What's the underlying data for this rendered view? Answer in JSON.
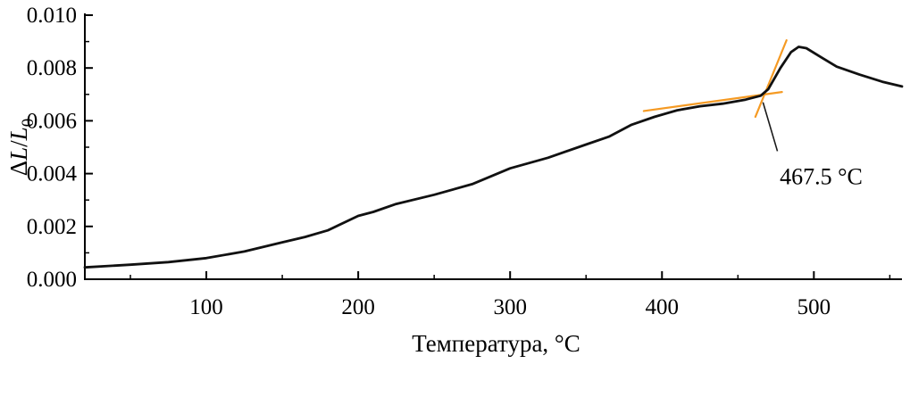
{
  "colors": {
    "axis": "#000000",
    "curve": "#111111",
    "tangent": "#f59a23",
    "leader": "#1a1a1a",
    "background": "#ffffff"
  },
  "chart_data": {
    "type": "line",
    "title": "",
    "xlabel": "Температура, °C",
    "ylabel": "ΔL/L₀",
    "ylabel_parts": {
      "delta": "Δ",
      "numerator": "L",
      "slash": "/",
      "denominator": "L",
      "denominator_sub": "0"
    },
    "xlim": [
      20,
      558
    ],
    "ylim": [
      0.0,
      0.01
    ],
    "grid": false,
    "legend": null,
    "x_ticks": [
      100,
      200,
      300,
      400,
      500
    ],
    "x_tick_labels": [
      "100",
      "200",
      "300",
      "400",
      "500"
    ],
    "x_minor_ticks": [
      50,
      150,
      250,
      350,
      450,
      550
    ],
    "y_ticks": [
      0.0,
      0.002,
      0.004,
      0.006,
      0.008,
      0.01
    ],
    "y_tick_labels": [
      "0.000",
      "0.002",
      "0.004",
      "0.006",
      "0.008",
      "0.010"
    ],
    "y_minor_ticks": [
      0.001,
      0.003,
      0.005,
      0.007,
      0.009
    ],
    "series": [
      {
        "name": "thermal-expansion-curve",
        "x": [
          20,
          50,
          75,
          100,
          125,
          150,
          165,
          180,
          200,
          210,
          225,
          250,
          275,
          300,
          325,
          350,
          365,
          380,
          395,
          410,
          425,
          440,
          455,
          465,
          470,
          478,
          485,
          490,
          495,
          505,
          515,
          530,
          545,
          558
        ],
        "y": [
          0.00045,
          0.00055,
          0.00065,
          0.0008,
          0.00105,
          0.0014,
          0.0016,
          0.00185,
          0.0024,
          0.00255,
          0.00285,
          0.0032,
          0.0036,
          0.0042,
          0.0046,
          0.0051,
          0.0054,
          0.00585,
          0.00615,
          0.0064,
          0.00655,
          0.00665,
          0.0068,
          0.00695,
          0.0072,
          0.008,
          0.0086,
          0.0088,
          0.00875,
          0.0084,
          0.00805,
          0.00775,
          0.00748,
          0.0073
        ]
      }
    ],
    "tangent_lines": [
      {
        "x1": 388.0,
        "y1": 0.00637,
        "x2": 479.0,
        "y2": 0.00709
      },
      {
        "x1": 461.5,
        "y1": 0.00615,
        "x2": 482.0,
        "y2": 0.00905
      }
    ],
    "annotation": {
      "label": "467.5 °C",
      "line": {
        "x1": 466.5,
        "y1": 0.0067,
        "x2": 476.0,
        "y2": 0.00485
      },
      "text_x": 477.5,
      "text_y": 0.0036
    }
  }
}
